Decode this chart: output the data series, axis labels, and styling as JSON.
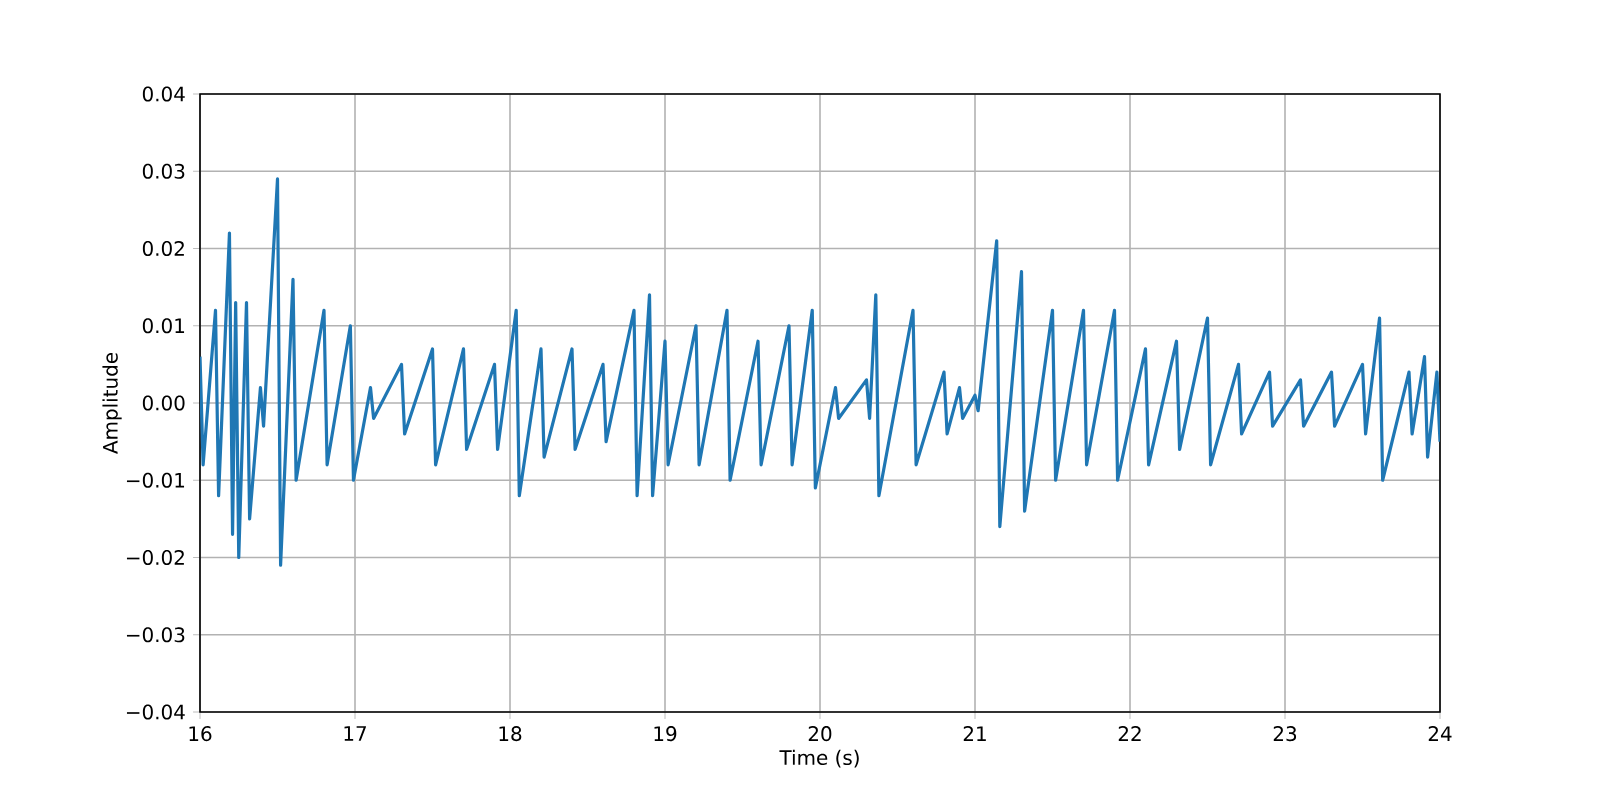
{
  "chart_data": {
    "type": "line",
    "xlabel": "Time (s)",
    "ylabel": "Amplitude",
    "x": [
      16.0,
      16.02,
      16.1,
      16.12,
      16.19,
      16.21,
      16.23,
      16.25,
      16.3,
      16.32,
      16.39,
      16.41,
      16.5,
      16.52,
      16.6,
      16.62,
      16.8,
      16.82,
      16.97,
      16.99,
      17.1,
      17.12,
      17.3,
      17.32,
      17.5,
      17.52,
      17.7,
      17.72,
      17.9,
      17.92,
      18.04,
      18.06,
      18.2,
      18.22,
      18.4,
      18.42,
      18.6,
      18.62,
      18.8,
      18.82,
      18.9,
      18.92,
      19.0,
      19.02,
      19.2,
      19.22,
      19.4,
      19.42,
      19.6,
      19.62,
      19.8,
      19.82,
      19.95,
      19.97,
      20.1,
      20.12,
      20.3,
      20.32,
      20.36,
      20.38,
      20.6,
      20.62,
      20.8,
      20.82,
      20.9,
      20.92,
      21.0,
      21.02,
      21.14,
      21.16,
      21.3,
      21.32,
      21.5,
      21.52,
      21.7,
      21.72,
      21.9,
      21.92,
      22.1,
      22.12,
      22.3,
      22.32,
      22.5,
      22.52,
      22.7,
      22.72,
      22.9,
      22.92,
      23.1,
      23.12,
      23.3,
      23.32,
      23.5,
      23.52,
      23.61,
      23.63,
      23.8,
      23.82,
      23.9,
      23.92,
      23.98,
      24.0
    ],
    "series": [
      {
        "color": "#1f77b4",
        "values": [
          0.006,
          -0.008,
          0.012,
          -0.012,
          0.022,
          -0.017,
          0.013,
          -0.02,
          0.013,
          -0.015,
          0.002,
          -0.003,
          0.029,
          -0.021,
          0.016,
          -0.01,
          0.012,
          -0.008,
          0.01,
          -0.01,
          0.002,
          -0.002,
          0.005,
          -0.004,
          0.007,
          -0.008,
          0.007,
          -0.006,
          0.005,
          -0.006,
          0.012,
          -0.012,
          0.007,
          -0.007,
          0.007,
          -0.006,
          0.005,
          -0.005,
          0.012,
          -0.012,
          0.014,
          -0.012,
          0.008,
          -0.008,
          0.01,
          -0.008,
          0.012,
          -0.01,
          0.008,
          -0.008,
          0.01,
          -0.008,
          0.012,
          -0.011,
          0.002,
          -0.002,
          0.003,
          -0.002,
          0.014,
          -0.012,
          0.012,
          -0.008,
          0.004,
          -0.004,
          0.002,
          -0.002,
          0.001,
          -0.001,
          0.021,
          -0.016,
          0.017,
          -0.014,
          0.012,
          -0.01,
          0.012,
          -0.008,
          0.012,
          -0.01,
          0.007,
          -0.008,
          0.008,
          -0.006,
          0.011,
          -0.008,
          0.005,
          -0.004,
          0.004,
          -0.003,
          0.003,
          -0.003,
          0.004,
          -0.003,
          0.005,
          -0.004,
          0.011,
          -0.01,
          0.004,
          -0.004,
          0.006,
          -0.007,
          0.004,
          -0.005
        ]
      }
    ],
    "xlim": [
      16,
      24
    ],
    "xticks": [
      16,
      17,
      18,
      19,
      20,
      21,
      22,
      23,
      24
    ],
    "ylim": [
      -0.04,
      0.04
    ],
    "yticks": [
      {
        "value": -0.04,
        "label": "−0.04"
      },
      {
        "value": -0.03,
        "label": "−0.03"
      },
      {
        "value": -0.02,
        "label": "−0.02"
      },
      {
        "value": -0.01,
        "label": "−0.01"
      },
      {
        "value": 0,
        "label": "0.00"
      },
      {
        "value": 0.01,
        "label": "0.01"
      },
      {
        "value": 0.02,
        "label": "0.02"
      },
      {
        "value": 0.03,
        "label": "0.03"
      },
      {
        "value": 0.04,
        "label": "0.04"
      }
    ],
    "grid": true,
    "marker": "none",
    "line_style": "solid"
  }
}
